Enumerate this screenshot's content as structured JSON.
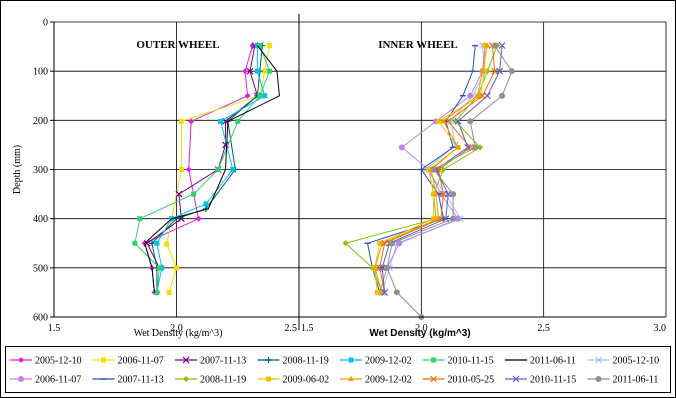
{
  "chart_data": [
    {
      "type": "line",
      "title": "OUTER WHEEL",
      "xlabel": "Wet Density  (kg/m^3)",
      "ylabel": "Depth (mm)",
      "xlim": [
        1.5,
        2.5
      ],
      "ylim": [
        0,
        600
      ],
      "y_inverted": true,
      "x_ticks": [
        "1.5",
        "2.0",
        "2.5"
      ],
      "y_ticks": [
        "0",
        "100",
        "200",
        "300",
        "400",
        "500",
        "600"
      ],
      "grid": true,
      "series": [
        {
          "name": "2005-12-10",
          "color": "#e020e0",
          "marker": "diamond",
          "points": [
            [
              2.31,
              48
            ],
            [
              2.28,
              100
            ],
            [
              2.29,
              150
            ],
            [
              2.06,
              202
            ],
            [
              2.05,
              300
            ],
            [
              2.09,
              400
            ],
            [
              1.87,
              450
            ],
            [
              1.9,
              500
            ],
            [
              1.91,
              550
            ]
          ]
        },
        {
          "name": "2006-11-07",
          "color": "#f0e000",
          "marker": "square",
          "points": [
            [
              2.38,
              48
            ],
            [
              2.36,
              100
            ],
            [
              2.34,
              150
            ],
            [
              2.02,
              202
            ],
            [
              2.02,
              300
            ],
            [
              1.96,
              452
            ],
            [
              2.0,
              500
            ],
            [
              1.97,
              550
            ]
          ]
        },
        {
          "name": "2007-11-13",
          "color": "#800080",
          "marker": "x",
          "points": [
            [
              2.32,
              48
            ],
            [
              2.3,
              100
            ],
            [
              2.33,
              150
            ],
            [
              2.2,
              202
            ],
            [
              2.2,
              250
            ],
            [
              2.17,
              300
            ],
            [
              2.01,
              350
            ],
            [
              2.02,
              400
            ],
            [
              1.88,
              450
            ],
            [
              1.93,
              500
            ]
          ]
        },
        {
          "name": "2008-11-19",
          "color": "#006060",
          "marker": "plus",
          "points": [
            [
              2.35,
              48
            ],
            [
              2.34,
              100
            ],
            [
              2.33,
              150
            ],
            [
              2.21,
              202
            ],
            [
              2.24,
              300
            ],
            [
              2.12,
              380
            ],
            [
              2.0,
              400
            ],
            [
              1.9,
              450
            ],
            [
              1.92,
              500
            ],
            [
              1.92,
              550
            ]
          ]
        },
        {
          "name": "2009-12-02",
          "color": "#00c0f0",
          "marker": "square",
          "points": [
            [
              2.33,
              48
            ],
            [
              2.33,
              100
            ],
            [
              2.36,
              150
            ],
            [
              2.18,
              202
            ],
            [
              2.23,
              300
            ],
            [
              2.12,
              370
            ],
            [
              1.98,
              400
            ],
            [
              1.92,
              450
            ],
            [
              1.94,
              500
            ],
            [
              1.92,
              550
            ]
          ]
        },
        {
          "name": "2010-11-15",
          "color": "#30d070",
          "marker": "square",
          "points": [
            [
              2.34,
              48
            ],
            [
              2.38,
              100
            ],
            [
              2.34,
              150
            ],
            [
              2.25,
              202
            ],
            [
              2.17,
              300
            ],
            [
              2.07,
              350
            ],
            [
              1.85,
              400
            ],
            [
              1.83,
              450
            ],
            [
              1.93,
              500
            ],
            [
              1.92,
              550
            ]
          ]
        },
        {
          "name": "2011-06-11",
          "color": "#000000",
          "marker": "none",
          "points": [
            [
              2.33,
              48
            ],
            [
              2.41,
              100
            ],
            [
              2.42,
              150
            ],
            [
              2.21,
              202
            ],
            [
              2.2,
              300
            ],
            [
              2.13,
              380
            ],
            [
              1.98,
              400
            ],
            [
              1.87,
              450
            ],
            [
              1.9,
              500
            ],
            [
              1.91,
              550
            ]
          ]
        }
      ]
    },
    {
      "type": "line",
      "title": "INNER WHEEL",
      "xlabel": "Wet Density (kg/m^3)",
      "xlim": [
        1.5,
        3.0
      ],
      "ylim": [
        0,
        600
      ],
      "y_inverted": true,
      "x_ticks": [
        "1.5",
        "2.0",
        "2.5",
        "3.0"
      ],
      "grid": true,
      "series": [
        {
          "name": "2005-12-10",
          "color": "#a0c0ff",
          "marker": "x",
          "points": [
            [
              2.25,
              48
            ],
            [
              2.26,
              100
            ],
            [
              2.21,
              150
            ],
            [
              2.12,
              202
            ],
            [
              2.14,
              250
            ],
            [
              2.02,
              300
            ],
            [
              2.1,
              350
            ],
            [
              2.16,
              400
            ],
            [
              1.9,
              450
            ],
            [
              1.87,
              500
            ],
            [
              1.84,
              550
            ]
          ]
        },
        {
          "name": "2006-11-07",
          "color": "#c080f0",
          "marker": "circle",
          "points": [
            [
              2.26,
              48
            ],
            [
              2.25,
              100
            ],
            [
              2.2,
              150
            ],
            [
              2.06,
              202
            ],
            [
              1.92,
              255
            ],
            [
              2.03,
              300
            ],
            [
              2.08,
              350
            ],
            [
              2.15,
              400
            ],
            [
              1.91,
              450
            ],
            [
              1.86,
              500
            ],
            [
              1.83,
              550
            ]
          ]
        },
        {
          "name": "2007-11-13",
          "color": "#2050d0",
          "marker": "dash",
          "points": [
            [
              2.22,
              48
            ],
            [
              2.21,
              100
            ],
            [
              2.17,
              150
            ],
            [
              2.1,
              202
            ],
            [
              2.13,
              255
            ],
            [
              2.0,
              300
            ],
            [
              2.07,
              350
            ],
            [
              2.09,
              400
            ],
            [
              1.78,
              450
            ],
            [
              1.8,
              500
            ],
            [
              1.83,
              550
            ]
          ]
        },
        {
          "name": "2008-11-19",
          "color": "#88c000",
          "marker": "diamond",
          "points": [
            [
              2.31,
              48
            ],
            [
              2.27,
              100
            ],
            [
              2.23,
              150
            ],
            [
              2.14,
              202
            ],
            [
              2.24,
              255
            ],
            [
              2.09,
              300
            ],
            [
              2.05,
              350
            ],
            [
              2.06,
              400
            ],
            [
              1.69,
              450
            ],
            [
              1.8,
              500
            ],
            [
              1.84,
              550
            ]
          ]
        },
        {
          "name": "2009-06-02",
          "color": "#f0c000",
          "marker": "square",
          "points": [
            [
              2.26,
              48
            ],
            [
              2.26,
              100
            ],
            [
              2.24,
              150
            ],
            [
              2.07,
              202
            ],
            [
              2.15,
              255
            ],
            [
              2.03,
              300
            ],
            [
              2.05,
              350
            ],
            [
              2.05,
              400
            ],
            [
              1.83,
              450
            ],
            [
              1.81,
              500
            ],
            [
              1.82,
              550
            ]
          ]
        },
        {
          "name": "2009-12-02",
          "color": "#f0a000",
          "marker": "triangle",
          "points": [
            [
              2.27,
              48
            ],
            [
              2.25,
              100
            ],
            [
              2.23,
              150
            ],
            [
              2.09,
              202
            ],
            [
              2.15,
              255
            ],
            [
              2.04,
              300
            ],
            [
              2.06,
              350
            ],
            [
              2.07,
              400
            ],
            [
              1.84,
              450
            ],
            [
              1.81,
              500
            ],
            [
              1.84,
              550
            ]
          ]
        },
        {
          "name": "2010-05-25",
          "color": "#f07000",
          "marker": "x",
          "points": [
            [
              2.29,
              48
            ],
            [
              2.3,
              100
            ],
            [
              2.25,
              150
            ],
            [
              2.11,
              202
            ],
            [
              2.2,
              255
            ],
            [
              2.07,
              300
            ],
            [
              2.09,
              350
            ],
            [
              2.08,
              400
            ],
            [
              1.85,
              450
            ],
            [
              1.83,
              500
            ],
            [
              1.85,
              550
            ]
          ]
        },
        {
          "name": "2010-11-15",
          "color": "#6060c0",
          "marker": "x",
          "points": [
            [
              2.33,
              48
            ],
            [
              2.32,
              100
            ],
            [
              2.27,
              150
            ],
            [
              2.15,
              202
            ],
            [
              2.19,
              255
            ],
            [
              2.06,
              300
            ],
            [
              2.11,
              350
            ],
            [
              2.1,
              400
            ],
            [
              1.87,
              450
            ],
            [
              1.84,
              500
            ],
            [
              1.85,
              550
            ]
          ]
        },
        {
          "name": "2011-06-11",
          "color": "#909090",
          "marker": "circle",
          "points": [
            [
              2.3,
              48
            ],
            [
              2.37,
              100
            ],
            [
              2.33,
              150
            ],
            [
              2.2,
              202
            ],
            [
              2.22,
              255
            ],
            [
              2.05,
              300
            ],
            [
              2.13,
              350
            ],
            [
              2.13,
              400
            ],
            [
              1.88,
              450
            ],
            [
              1.86,
              500
            ],
            [
              1.9,
              550
            ],
            [
              2.0,
              600
            ]
          ]
        }
      ]
    }
  ],
  "legend": {
    "row1": [
      {
        "name": "2005-12-10",
        "color": "#e020e0",
        "marker": "diamond"
      },
      {
        "name": "2006-11-07",
        "color": "#f0e000",
        "marker": "square"
      },
      {
        "name": "2007-11-13",
        "color": "#800080",
        "marker": "x"
      },
      {
        "name": "2008-11-19",
        "color": "#006060",
        "marker": "plus"
      },
      {
        "name": "2009-12-02",
        "color": "#00c0f0",
        "marker": "square"
      },
      {
        "name": "2010-11-15",
        "color": "#30d070",
        "marker": "square"
      },
      {
        "name": "2011-06-11",
        "color": "#000000",
        "marker": "none"
      },
      {
        "name": "2005-12-10",
        "color": "#a0c0ff",
        "marker": "x"
      }
    ],
    "row2": [
      {
        "name": "2006-11-07",
        "color": "#c080f0",
        "marker": "circle"
      },
      {
        "name": "2007-11-13",
        "color": "#2050d0",
        "marker": "dash"
      },
      {
        "name": "2008-11-19",
        "color": "#88c000",
        "marker": "diamond"
      },
      {
        "name": "2009-06-02",
        "color": "#f0c000",
        "marker": "square"
      },
      {
        "name": "2009-12-02",
        "color": "#f0a000",
        "marker": "triangle"
      },
      {
        "name": "2010-05-25",
        "color": "#f07000",
        "marker": "x"
      },
      {
        "name": "2010-11-15",
        "color": "#6060c0",
        "marker": "x"
      },
      {
        "name": "2011-06-11",
        "color": "#909090",
        "marker": "circle"
      }
    ]
  }
}
